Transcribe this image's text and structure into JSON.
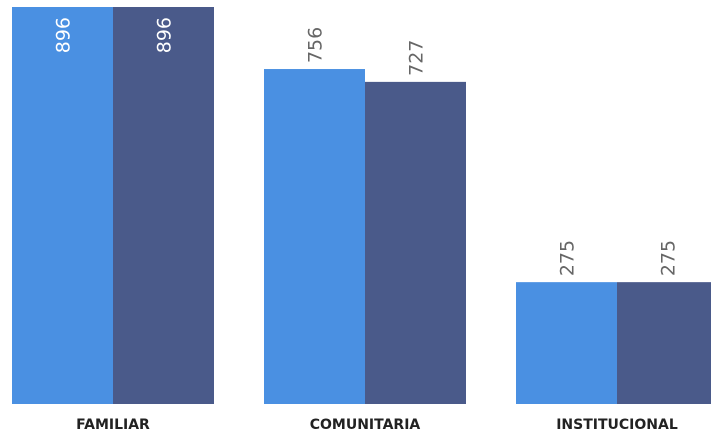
{
  "chart_data": {
    "type": "bar",
    "categories": [
      "FAMILIAR",
      "COMUNITARIA",
      "INSTITUCIONAL"
    ],
    "series": [
      {
        "values": [
          896,
          756,
          275
        ],
        "color": "#4a90e2"
      },
      {
        "values": [
          896,
          727,
          275
        ],
        "color": "#4a5a8a"
      }
    ],
    "ylim": [
      0,
      896
    ],
    "grid": false,
    "legend": "none",
    "label_colors": {
      "inside": "#ffffff",
      "outside": "#666666"
    }
  }
}
